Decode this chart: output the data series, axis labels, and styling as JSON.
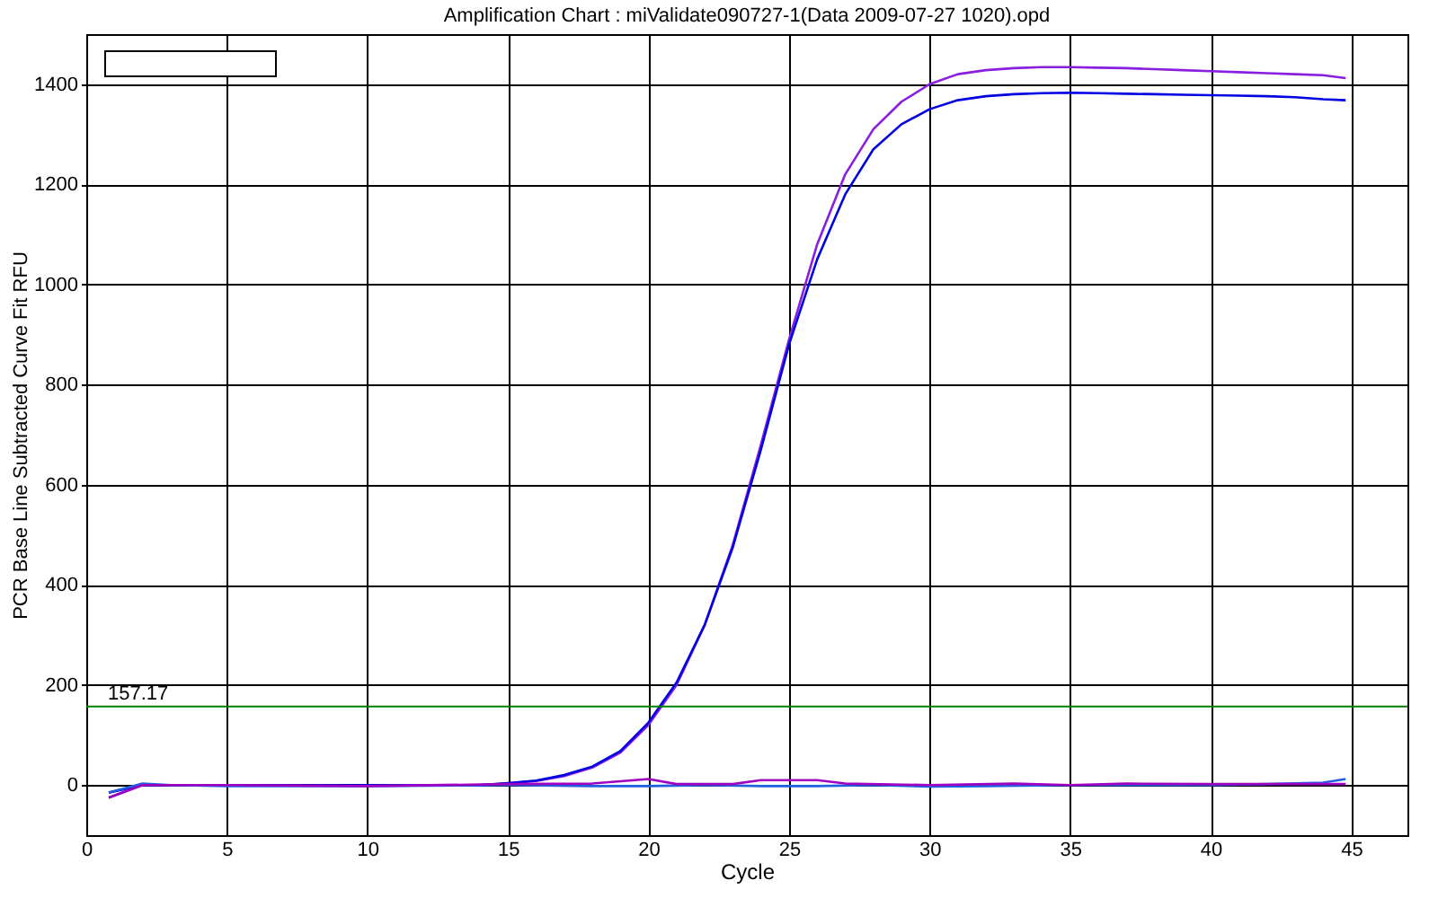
{
  "chart_data": {
    "type": "line",
    "title": "Amplification Chart : miValidate090727-1(Data 2009-07-27 1020).opd",
    "xlabel": "Cycle",
    "ylabel": "PCR Base Line Subtracted Curve Fit RFU",
    "xlim": [
      0,
      47
    ],
    "xticks": [
      0,
      5,
      10,
      15,
      20,
      25,
      30,
      35,
      40,
      45
    ],
    "ylim": [
      -100,
      1500
    ],
    "yticks": [
      0,
      200,
      400,
      600,
      800,
      1000,
      1200,
      1400
    ],
    "grid": true,
    "series": [
      {
        "color": "#8a1ee0",
        "x": [
          0.8,
          2,
          3,
          5,
          8,
          11,
          14,
          15,
          16,
          17,
          18,
          19,
          20,
          21,
          22,
          23,
          24,
          25,
          26,
          27,
          28,
          29,
          30,
          31,
          32,
          33,
          34,
          35,
          36,
          37,
          38,
          39,
          40,
          41,
          42,
          43,
          44,
          44.8
        ],
        "values": [
          -25,
          0,
          0,
          0,
          0,
          0,
          0,
          3,
          8,
          18,
          35,
          65,
          120,
          200,
          320,
          480,
          680,
          890,
          1080,
          1220,
          1310,
          1365,
          1400,
          1420,
          1428,
          1432,
          1434,
          1434,
          1433,
          1432,
          1430,
          1428,
          1426,
          1424,
          1422,
          1420,
          1418,
          1412
        ]
      },
      {
        "color": "#0000e0",
        "x": [
          0.8,
          2,
          3,
          5,
          8,
          11,
          14,
          15,
          16,
          17,
          18,
          19,
          20,
          21,
          22,
          23,
          24,
          25,
          26,
          27,
          28,
          29,
          30,
          31,
          32,
          33,
          34,
          35,
          36,
          37,
          38,
          39,
          40,
          41,
          42,
          43,
          44,
          44.8
        ],
        "values": [
          -15,
          0,
          0,
          0,
          0,
          0,
          0,
          4,
          9,
          20,
          37,
          68,
          125,
          205,
          320,
          475,
          670,
          880,
          1050,
          1180,
          1270,
          1320,
          1350,
          1368,
          1376,
          1380,
          1382,
          1383,
          1382,
          1381,
          1380,
          1379,
          1378,
          1377,
          1376,
          1374,
          1370,
          1368
        ]
      },
      {
        "color": "#2060e0",
        "x": [
          0.8,
          2,
          3,
          5,
          10,
          15,
          18,
          20,
          22,
          24,
          26,
          28,
          30,
          32,
          35,
          38,
          40,
          42,
          44,
          44.8
        ],
        "values": [
          -15,
          3,
          0,
          -2,
          -2,
          0,
          -2,
          -2,
          0,
          -2,
          -2,
          0,
          -3,
          -2,
          0,
          0,
          0,
          2,
          5,
          12
        ]
      },
      {
        "color": "#a000c0",
        "x": [
          0.8,
          2,
          3,
          5,
          10,
          15,
          18,
          19.5,
          20,
          21,
          23,
          24,
          26,
          27,
          30,
          33,
          35,
          37,
          40,
          44.8
        ],
        "values": [
          -25,
          0,
          0,
          0,
          -2,
          2,
          3,
          10,
          12,
          2,
          2,
          10,
          10,
          3,
          0,
          3,
          0,
          3,
          2,
          2
        ]
      }
    ],
    "ref_lines": [
      {
        "axis": "y",
        "value": 157.17,
        "label": "157.17",
        "color": "#008000"
      }
    ]
  }
}
